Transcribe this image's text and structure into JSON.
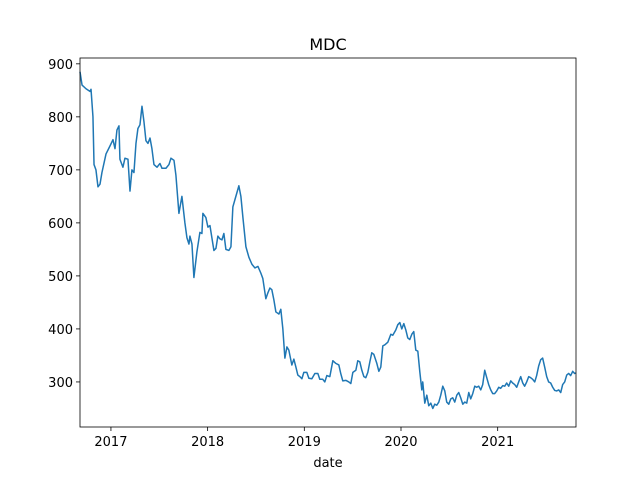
{
  "chart_data": {
    "type": "line",
    "title": "MDC",
    "xlabel": "date",
    "color": "#1f77b4",
    "xlim": [
      2016.68,
      2021.81
    ],
    "ylim": [
      215,
      911
    ],
    "xticks": [
      2017,
      2018,
      2019,
      2020,
      2021
    ],
    "yticks": [
      300,
      400,
      500,
      600,
      700,
      800,
      900
    ],
    "x": [
      2016.68,
      2016.701,
      2016.742,
      2016.783,
      2016.794,
      2016.814,
      2016.825,
      2016.845,
      2016.866,
      2016.887,
      2016.907,
      2016.949,
      2016.99,
      2017.021,
      2017.042,
      2017.062,
      2017.083,
      2017.093,
      2017.124,
      2017.145,
      2017.176,
      2017.197,
      2017.217,
      2017.238,
      2017.259,
      2017.279,
      2017.3,
      2017.321,
      2017.342,
      2017.362,
      2017.383,
      2017.404,
      2017.424,
      2017.445,
      2017.476,
      2017.507,
      2017.528,
      2017.569,
      2017.6,
      2017.621,
      2017.652,
      2017.672,
      2017.703,
      2017.734,
      2017.765,
      2017.786,
      2017.807,
      2017.817,
      2017.838,
      2017.858,
      2017.889,
      2017.92,
      2017.941,
      2017.951,
      2017.982,
      2018.003,
      2018.024,
      2018.044,
      2018.065,
      2018.086,
      2018.106,
      2018.127,
      2018.148,
      2018.168,
      2018.189,
      2018.22,
      2018.241,
      2018.261,
      2018.292,
      2018.323,
      2018.344,
      2018.365,
      2018.396,
      2018.427,
      2018.458,
      2018.489,
      2018.52,
      2018.551,
      2018.571,
      2018.602,
      2018.623,
      2018.644,
      2018.664,
      2018.685,
      2018.706,
      2018.737,
      2018.757,
      2018.778,
      2018.799,
      2018.82,
      2018.84,
      2018.871,
      2018.892,
      2018.913,
      2018.933,
      2018.954,
      2018.975,
      2018.995,
      2019.026,
      2019.047,
      2019.078,
      2019.109,
      2019.14,
      2019.16,
      2019.191,
      2019.212,
      2019.233,
      2019.264,
      2019.295,
      2019.326,
      2019.357,
      2019.378,
      2019.398,
      2019.429,
      2019.46,
      2019.481,
      2019.502,
      2019.533,
      2019.553,
      2019.574,
      2019.595,
      2019.616,
      2019.636,
      2019.657,
      2019.678,
      2019.698,
      2019.719,
      2019.75,
      2019.771,
      2019.791,
      2019.812,
      2019.833,
      2019.864,
      2019.895,
      2019.915,
      2019.946,
      2019.967,
      2019.988,
      2020.008,
      2020.029,
      2020.05,
      2020.07,
      2020.091,
      2020.112,
      2020.132,
      2020.153,
      2020.174,
      2020.194,
      2020.215,
      2020.225,
      2020.246,
      2020.267,
      2020.287,
      2020.308,
      2020.329,
      2020.349,
      2020.37,
      2020.391,
      2020.411,
      2020.432,
      2020.453,
      2020.473,
      2020.494,
      2020.515,
      2020.535,
      2020.556,
      2020.577,
      2020.597,
      2020.618,
      2020.639,
      2020.659,
      2020.68,
      2020.701,
      2020.721,
      2020.742,
      2020.763,
      2020.783,
      2020.804,
      2020.825,
      2020.845,
      2020.866,
      2020.887,
      2020.907,
      2020.928,
      2020.949,
      2020.969,
      2020.99,
      2021.011,
      2021.031,
      2021.052,
      2021.073,
      2021.093,
      2021.114,
      2021.135,
      2021.155,
      2021.176,
      2021.197,
      2021.217,
      2021.238,
      2021.259,
      2021.279,
      2021.3,
      2021.321,
      2021.341,
      2021.362,
      2021.383,
      2021.403,
      2021.424,
      2021.445,
      2021.465,
      2021.486,
      2021.507,
      2021.527,
      2021.548,
      2021.569,
      2021.59,
      2021.61,
      2021.631,
      2021.652,
      2021.672,
      2021.693,
      2021.714,
      2021.734,
      2021.755,
      2021.776,
      2021.796,
      2021.806
    ],
    "values": [
      885,
      860,
      853,
      848,
      852,
      800,
      710,
      700,
      668,
      673,
      695,
      730,
      745,
      757,
      740,
      775,
      783,
      720,
      705,
      722,
      720,
      660,
      700,
      695,
      750,
      778,
      785,
      820,
      790,
      755,
      750,
      760,
      740,
      710,
      705,
      712,
      703,
      703,
      710,
      722,
      718,
      690,
      618,
      650,
      600,
      572,
      560,
      575,
      560,
      497,
      545,
      582,
      580,
      618,
      610,
      592,
      595,
      572,
      548,
      552,
      575,
      570,
      568,
      580,
      550,
      548,
      555,
      630,
      650,
      670,
      650,
      610,
      555,
      535,
      522,
      515,
      518,
      505,
      495,
      457,
      468,
      477,
      474,
      455,
      432,
      428,
      437,
      400,
      345,
      366,
      360,
      332,
      343,
      328,
      313,
      310,
      306,
      318,
      318,
      307,
      306,
      316,
      316,
      305,
      305,
      300,
      312,
      310,
      340,
      335,
      332,
      315,
      302,
      303,
      300,
      297,
      318,
      322,
      340,
      338,
      322,
      310,
      308,
      318,
      338,
      355,
      352,
      335,
      320,
      328,
      368,
      370,
      375,
      390,
      388,
      398,
      408,
      412,
      400,
      410,
      398,
      383,
      380,
      390,
      395,
      360,
      358,
      320,
      285,
      300,
      260,
      275,
      255,
      260,
      250,
      258,
      256,
      262,
      275,
      292,
      283,
      262,
      258,
      268,
      270,
      262,
      275,
      280,
      270,
      258,
      262,
      260,
      280,
      268,
      278,
      292,
      290,
      292,
      285,
      295,
      322,
      308,
      295,
      285,
      278,
      278,
      283,
      290,
      288,
      293,
      292,
      298,
      292,
      302,
      298,
      295,
      290,
      300,
      310,
      298,
      292,
      300,
      310,
      308,
      305,
      300,
      312,
      330,
      342,
      345,
      328,
      310,
      300,
      298,
      290,
      284,
      283,
      285,
      280,
      295,
      300,
      313,
      316,
      312,
      320,
      316,
      317
    ]
  }
}
